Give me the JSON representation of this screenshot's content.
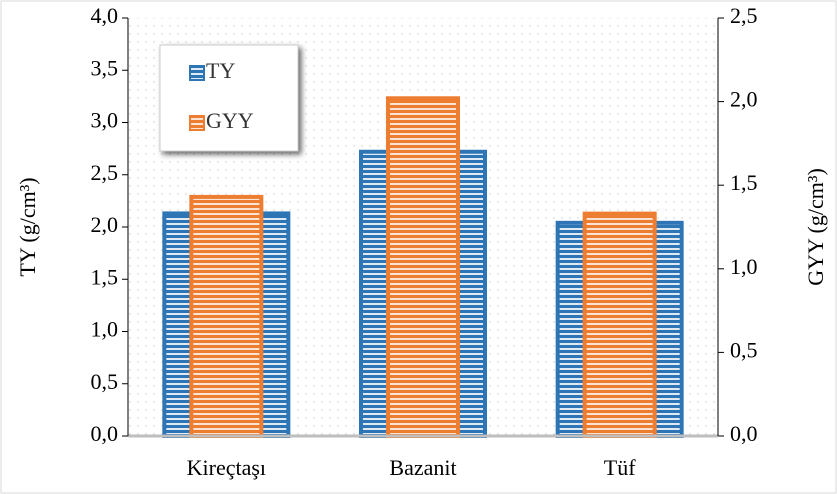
{
  "chart_data": {
    "type": "bar",
    "categories": [
      "Kireçtaşı",
      "Bazanit",
      "Tüf"
    ],
    "series": [
      {
        "name": "TY",
        "color": "#2e75b6",
        "values": [
          2.13,
          2.72,
          2.04
        ]
      },
      {
        "name": "GYY",
        "color": "#ed7d31",
        "values": [
          1.43,
          2.02,
          1.33
        ],
        "axis": "y2"
      }
    ],
    "ylabel": "TY (g/cm³)",
    "y2label": "GYY (g/cm³)",
    "ylim": [
      0,
      4
    ],
    "yticks": [
      {
        "value": 0,
        "label": "0,0"
      },
      {
        "value": 0.5,
        "label": "0,5"
      },
      {
        "value": 1,
        "label": "1,0"
      },
      {
        "value": 1.5,
        "label": "1,5"
      },
      {
        "value": 2,
        "label": "2,0"
      },
      {
        "value": 2.5,
        "label": "2,5"
      },
      {
        "value": 3,
        "label": "3,0"
      },
      {
        "value": 3.5,
        "label": "3,5"
      },
      {
        "value": 4,
        "label": "4,0"
      }
    ],
    "y2lim": [
      0,
      2.5
    ],
    "y2ticks": [
      {
        "value": 0,
        "label": "0,0"
      },
      {
        "value": 0.5,
        "label": "0,5"
      },
      {
        "value": 1,
        "label": "1,0"
      },
      {
        "value": 1.5,
        "label": "1,5"
      },
      {
        "value": 2,
        "label": "2,0"
      },
      {
        "value": 2.5,
        "label": "2,5"
      }
    ],
    "legend": "upper left"
  }
}
